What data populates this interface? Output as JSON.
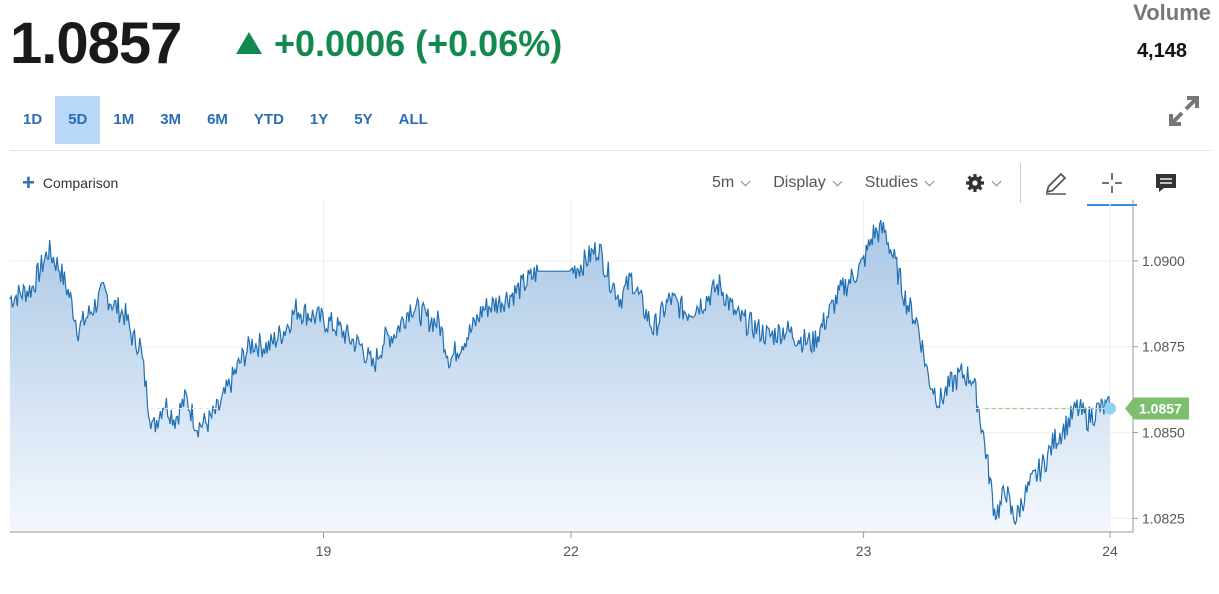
{
  "quote": {
    "price": "1.0857",
    "change": "+0.0006 (+0.06%)",
    "change_direction": "up",
    "volume_label": "Volume",
    "volume_value": "4,148"
  },
  "ranges": [
    {
      "label": "1D",
      "active": false
    },
    {
      "label": "5D",
      "active": true
    },
    {
      "label": "1M",
      "active": false
    },
    {
      "label": "3M",
      "active": false
    },
    {
      "label": "6M",
      "active": false
    },
    {
      "label": "YTD",
      "active": false
    },
    {
      "label": "1Y",
      "active": false
    },
    {
      "label": "5Y",
      "active": false
    },
    {
      "label": "ALL",
      "active": false
    }
  ],
  "toolbar": {
    "comparison_label": "Comparison",
    "interval_label": "5m",
    "display_label": "Display",
    "studies_label": "Studies",
    "icons": [
      "gear-icon",
      "pencil-icon",
      "crosshair-icon",
      "comment-icon",
      "expand-icon"
    ]
  },
  "colors": {
    "up": "#128a4f",
    "line": "#1f6fb2",
    "area_top": "#a9c7e6",
    "area_bottom": "#eef4fb",
    "price_tag": "#7dbf6e",
    "active_tab": "#b8d8f8"
  },
  "chart_data": {
    "type": "area",
    "ylim": [
      1.0821,
      1.0916
    ],
    "yticks": [
      "1.0900",
      "1.0875",
      "1.0850",
      "1.0825"
    ],
    "ytick_values": [
      1.09,
      1.0875,
      1.085,
      1.0825
    ],
    "xticks": [
      "19",
      "22",
      "23",
      "24"
    ],
    "xtick_positions": [
      0.285,
      0.51,
      0.776,
      1.0
    ],
    "last_value_label": "1.0857",
    "last_value": 1.0857,
    "series": [
      {
        "values": [
          [
            0.0,
            1.0889
          ],
          [
            0.02,
            1.0892
          ],
          [
            0.035,
            1.0903
          ],
          [
            0.045,
            1.0898
          ],
          [
            0.055,
            1.0889
          ],
          [
            0.062,
            1.088
          ],
          [
            0.075,
            1.0886
          ],
          [
            0.085,
            1.0891
          ],
          [
            0.095,
            1.0887
          ],
          [
            0.105,
            1.0884
          ],
          [
            0.112,
            1.0877
          ],
          [
            0.118,
            1.0876
          ],
          [
            0.125,
            1.086
          ],
          [
            0.13,
            1.0851
          ],
          [
            0.14,
            1.0859
          ],
          [
            0.15,
            1.0854
          ],
          [
            0.16,
            1.086
          ],
          [
            0.17,
            1.0852
          ],
          [
            0.18,
            1.0853
          ],
          [
            0.19,
            1.0857
          ],
          [
            0.2,
            1.0864
          ],
          [
            0.21,
            1.0871
          ],
          [
            0.22,
            1.0876
          ],
          [
            0.235,
            1.0875
          ],
          [
            0.25,
            1.088
          ],
          [
            0.26,
            1.0886
          ],
          [
            0.275,
            1.0884
          ],
          [
            0.29,
            1.0882
          ],
          [
            0.3,
            1.088
          ],
          [
            0.31,
            1.0877
          ],
          [
            0.32,
            1.0875
          ],
          [
            0.33,
            1.0869
          ],
          [
            0.34,
            1.0877
          ],
          [
            0.35,
            1.0879
          ],
          [
            0.365,
            1.0887
          ],
          [
            0.38,
            1.0883
          ],
          [
            0.39,
            1.0882
          ],
          [
            0.4,
            1.0871
          ],
          [
            0.41,
            1.0876
          ],
          [
            0.42,
            1.088
          ],
          [
            0.43,
            1.0886
          ],
          [
            0.445,
            1.0888
          ],
          [
            0.46,
            1.0891
          ],
          [
            0.47,
            1.0894
          ],
          [
            0.48,
            1.0897
          ],
          [
            0.51,
            1.0897
          ],
          [
            0.52,
            1.0899
          ],
          [
            0.535,
            1.0904
          ],
          [
            0.545,
            1.0895
          ],
          [
            0.555,
            1.0889
          ],
          [
            0.565,
            1.0895
          ],
          [
            0.575,
            1.0887
          ],
          [
            0.585,
            1.088
          ],
          [
            0.6,
            1.0889
          ],
          [
            0.615,
            1.0885
          ],
          [
            0.63,
            1.0888
          ],
          [
            0.645,
            1.0893
          ],
          [
            0.66,
            1.0884
          ],
          [
            0.675,
            1.0881
          ],
          [
            0.69,
            1.0878
          ],
          [
            0.705,
            1.088
          ],
          [
            0.72,
            1.0877
          ],
          [
            0.73,
            1.0876
          ],
          [
            0.745,
            1.0885
          ],
          [
            0.755,
            1.0891
          ],
          [
            0.765,
            1.0895
          ],
          [
            0.775,
            1.0899
          ],
          [
            0.785,
            1.0908
          ],
          [
            0.795,
            1.0909
          ],
          [
            0.805,
            1.0899
          ],
          [
            0.815,
            1.0888
          ],
          [
            0.825,
            1.0882
          ],
          [
            0.835,
            1.0866
          ],
          [
            0.845,
            1.0859
          ],
          [
            0.855,
            1.0864
          ],
          [
            0.865,
            1.0867
          ],
          [
            0.875,
            1.0866
          ],
          [
            0.88,
            1.0858
          ],
          [
            0.885,
            1.0849
          ],
          [
            0.89,
            1.0838
          ],
          [
            0.895,
            1.0827
          ],
          [
            0.9,
            1.0828
          ],
          [
            0.905,
            1.0834
          ],
          [
            0.91,
            1.0827
          ],
          [
            0.915,
            1.0825
          ],
          [
            0.92,
            1.083
          ],
          [
            0.93,
            1.0836
          ],
          [
            0.94,
            1.0841
          ],
          [
            0.95,
            1.0848
          ],
          [
            0.96,
            1.0852
          ],
          [
            0.97,
            1.0857
          ],
          [
            0.98,
            1.0854
          ],
          [
            0.99,
            1.0857
          ],
          [
            1.0,
            1.0857
          ]
        ]
      }
    ],
    "grid": true
  }
}
